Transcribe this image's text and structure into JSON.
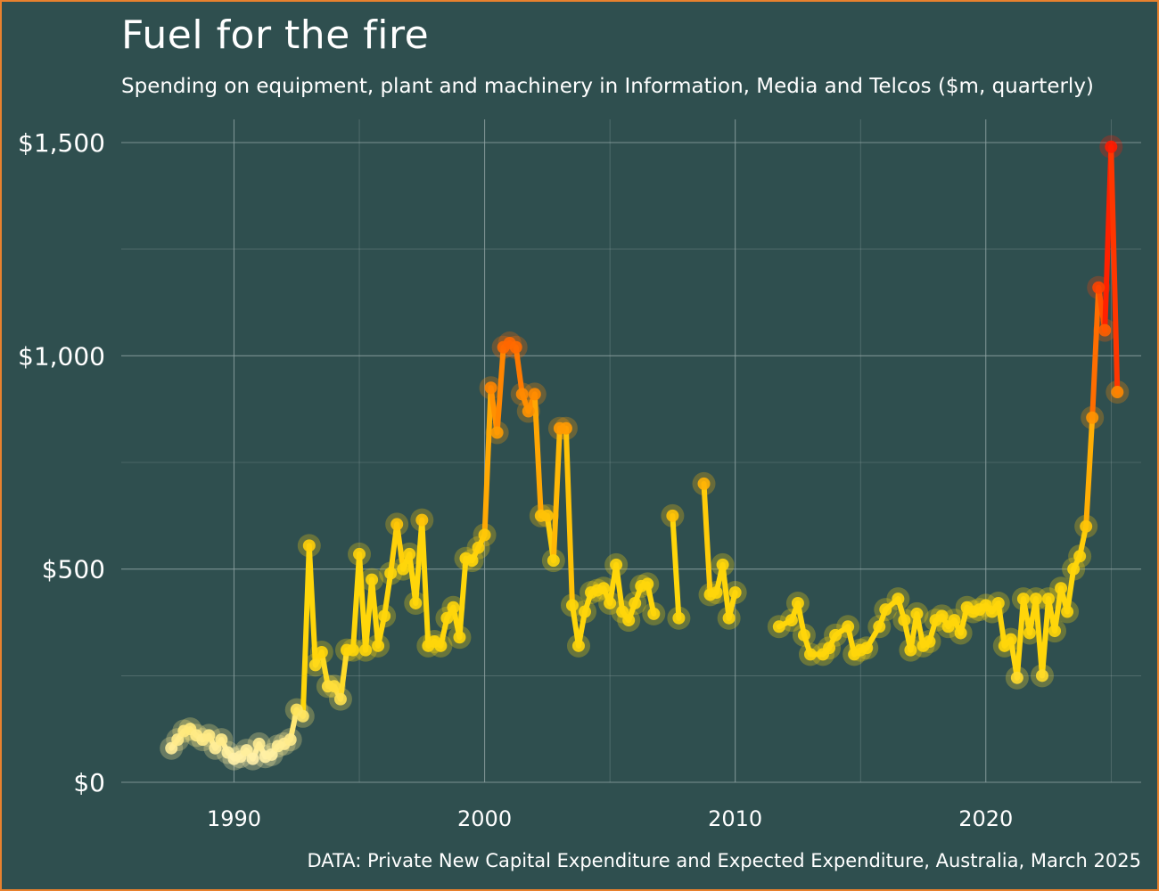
{
  "title": "Fuel for the fire",
  "subtitle": "Spending on equipment, plant and machinery in Information, Media and Telcos ($m, quarterly)",
  "source": "DATA: Private New Capital Expenditure and Expected Expenditure, Australia, March 2025",
  "colors": {
    "background": "#2f4f4f",
    "border": "#e8812e",
    "grid": "#8fa3a3",
    "text": "#ffffff",
    "low": "#fff6cc",
    "mid": "#ffd60a",
    "high": "#ff8c00",
    "peak": "#ff1a00"
  },
  "chart_data": {
    "type": "line",
    "title": "Fuel for the fire",
    "xlabel": "",
    "ylabel": "",
    "xlim": [
      1985.5,
      2026.2
    ],
    "ylim": [
      0,
      1500
    ],
    "grid": true,
    "y_ticks": [
      0,
      500,
      1000,
      1500
    ],
    "y_tick_labels": [
      "$0",
      "$500",
      "$1,000",
      "$1,500"
    ],
    "x_ticks": [
      1990,
      2000,
      2010,
      2020
    ],
    "x_tick_labels": [
      "1990",
      "2000",
      "2010",
      "2020"
    ],
    "series": [
      {
        "name": "Equipment, plant and machinery",
        "points": [
          [
            1987.5,
            80
          ],
          [
            1987.75,
            100
          ],
          [
            1988.0,
            120
          ],
          [
            1988.25,
            125
          ],
          [
            1988.5,
            110
          ],
          [
            1988.75,
            100
          ],
          [
            1989.0,
            110
          ],
          [
            1989.25,
            80
          ],
          [
            1989.5,
            100
          ],
          [
            1989.75,
            70
          ],
          [
            1990.0,
            55
          ],
          [
            1990.25,
            60
          ],
          [
            1990.5,
            75
          ],
          [
            1990.75,
            55
          ],
          [
            1991.0,
            90
          ],
          [
            1991.25,
            60
          ],
          [
            1991.5,
            65
          ],
          [
            1991.75,
            85
          ],
          [
            1992.0,
            90
          ],
          [
            1992.25,
            100
          ],
          [
            1992.5,
            170
          ],
          [
            1992.75,
            155
          ],
          [
            1993.0,
            555
          ],
          [
            1993.25,
            275
          ],
          [
            1993.5,
            305
          ],
          [
            1993.75,
            225
          ],
          [
            1994.0,
            225
          ],
          [
            1994.25,
            195
          ],
          [
            1994.5,
            310
          ],
          [
            1994.75,
            310
          ],
          [
            1995.0,
            535
          ],
          [
            1995.25,
            310
          ],
          [
            1995.5,
            475
          ],
          [
            1995.75,
            320
          ],
          [
            1996.0,
            390
          ],
          [
            1996.25,
            490
          ],
          [
            1996.5,
            605
          ],
          [
            1996.75,
            500
          ],
          [
            1997.0,
            535
          ],
          [
            1997.25,
            420
          ],
          [
            1997.5,
            615
          ],
          [
            1997.75,
            320
          ],
          [
            1998.0,
            330
          ],
          [
            1998.25,
            320
          ],
          [
            1998.5,
            385
          ],
          [
            1998.75,
            410
          ],
          [
            1999.0,
            340
          ],
          [
            1999.25,
            525
          ],
          [
            1999.5,
            520
          ],
          [
            1999.75,
            550
          ],
          [
            2000.0,
            580
          ],
          [
            2000.25,
            925
          ],
          [
            2000.5,
            820
          ],
          [
            2000.75,
            1020
          ],
          [
            2001.0,
            1030
          ],
          [
            2001.25,
            1020
          ],
          [
            2001.5,
            910
          ],
          [
            2001.75,
            870
          ],
          [
            2002.0,
            910
          ],
          [
            2002.25,
            625
          ],
          [
            2002.5,
            625
          ],
          [
            2002.75,
            520
          ],
          [
            2003.0,
            830
          ],
          [
            2003.25,
            830
          ],
          [
            2003.5,
            415
          ],
          [
            2003.75,
            320
          ],
          [
            2004.0,
            400
          ],
          [
            2004.25,
            445
          ],
          [
            2004.5,
            450
          ],
          [
            2004.75,
            455
          ],
          [
            2005.0,
            420
          ],
          [
            2005.25,
            510
          ],
          [
            2005.5,
            400
          ],
          [
            2005.75,
            380
          ],
          [
            2006.0,
            420
          ],
          [
            2006.25,
            460
          ],
          [
            2006.5,
            465
          ],
          [
            2006.75,
            395
          ],
          null,
          [
            2007.5,
            625
          ],
          [
            2007.75,
            385
          ],
          null,
          [
            2008.75,
            700
          ],
          [
            2009.0,
            440
          ],
          [
            2009.25,
            445
          ],
          [
            2009.5,
            510
          ],
          [
            2009.75,
            385
          ],
          [
            2010.0,
            445
          ],
          null,
          [
            2011.75,
            365
          ],
          [
            2012.25,
            380
          ],
          [
            2012.5,
            420
          ],
          [
            2012.75,
            345
          ],
          [
            2013.0,
            300
          ],
          [
            2013.5,
            300
          ],
          [
            2013.75,
            315
          ],
          [
            2014.0,
            345
          ],
          [
            2014.5,
            365
          ],
          [
            2014.75,
            300
          ],
          [
            2015.0,
            310
          ],
          [
            2015.25,
            315
          ],
          [
            2015.75,
            365
          ],
          [
            2016.0,
            405
          ],
          [
            2016.5,
            430
          ],
          [
            2016.75,
            380
          ],
          [
            2017.0,
            310
          ],
          [
            2017.25,
            395
          ],
          [
            2017.5,
            320
          ],
          [
            2017.75,
            330
          ],
          [
            2018.0,
            380
          ],
          [
            2018.25,
            390
          ],
          [
            2018.5,
            365
          ],
          [
            2018.75,
            380
          ],
          [
            2019.0,
            350
          ],
          [
            2019.25,
            410
          ],
          [
            2019.5,
            400
          ],
          [
            2019.75,
            405
          ],
          [
            2020.0,
            415
          ],
          [
            2020.25,
            400
          ],
          [
            2020.5,
            420
          ],
          [
            2020.75,
            320
          ],
          [
            2021.0,
            335
          ],
          [
            2021.25,
            245
          ],
          [
            2021.5,
            430
          ],
          [
            2021.75,
            350
          ],
          [
            2022.0,
            430
          ],
          [
            2022.25,
            250
          ],
          [
            2022.5,
            430
          ],
          [
            2022.75,
            355
          ],
          [
            2023.0,
            455
          ],
          [
            2023.25,
            400
          ],
          [
            2023.5,
            500
          ],
          [
            2023.75,
            530
          ],
          [
            2024.0,
            600
          ],
          [
            2024.25,
            855
          ],
          [
            2024.5,
            1160
          ],
          [
            2024.75,
            1060
          ],
          [
            2025.0,
            1490
          ],
          [
            2025.25,
            915
          ]
        ]
      }
    ]
  }
}
